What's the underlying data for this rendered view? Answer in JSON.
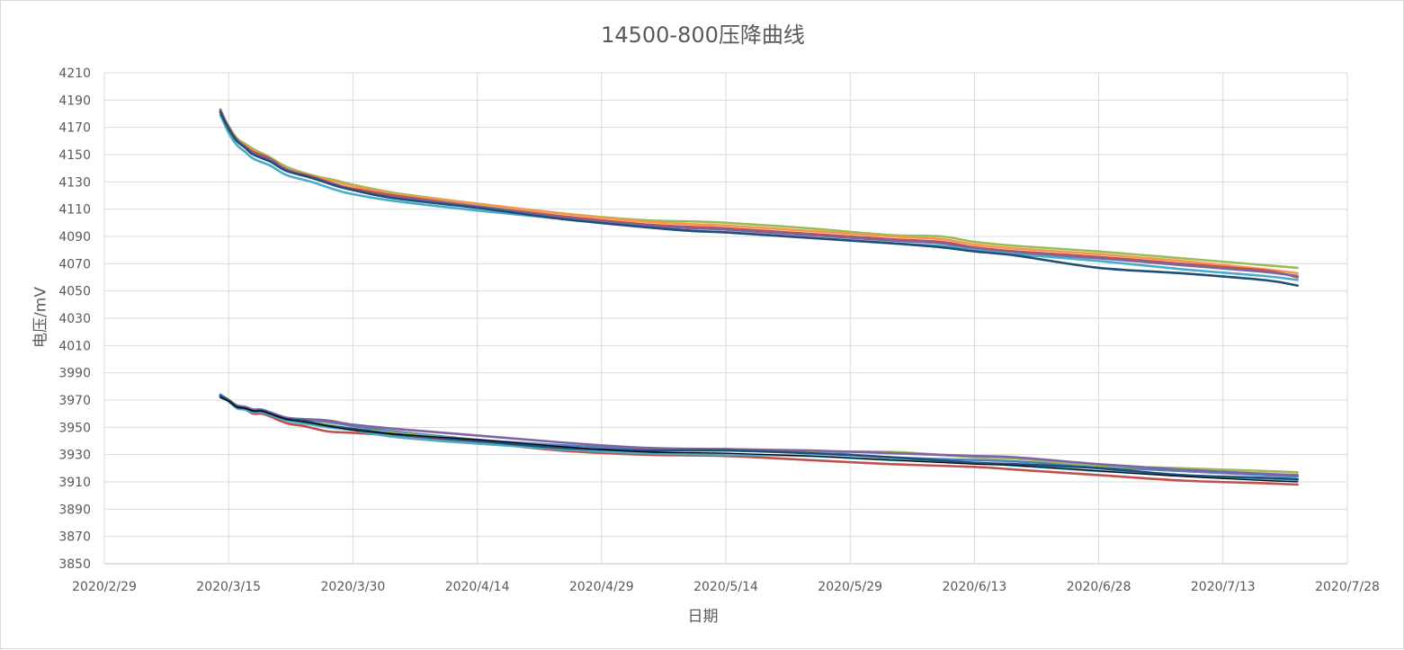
{
  "chart_data": {
    "type": "line",
    "title": "14500-800压降曲线",
    "xlabel": "日期",
    "ylabel": "电压/mV",
    "ylim": [
      3850,
      4210
    ],
    "yticks": [
      3850,
      3870,
      3890,
      3910,
      3930,
      3950,
      3970,
      3990,
      4010,
      4030,
      4050,
      4070,
      4090,
      4110,
      4130,
      4150,
      4170,
      4190,
      4210
    ],
    "xlim": [
      "2020/2/29",
      "2020/7/28"
    ],
    "xticks": [
      "2020/2/29",
      "2020/3/15",
      "2020/3/30",
      "2020/4/14",
      "2020/4/29",
      "2020/5/14",
      "2020/5/29",
      "2020/6/13",
      "2020/6/28",
      "2020/7/13",
      "2020/7/28"
    ],
    "grid": true,
    "legend": "none",
    "colors": {
      "text": "#595959",
      "grid": "#d9d9d9",
      "axis": "#bfbfbf",
      "series": [
        "#9bbb59",
        "#f79646",
        "#c0504d",
        "#8064a2",
        "#4bacc6",
        "#1f4e79",
        "#4f81bd",
        "#000000"
      ]
    },
    "series": [
      {
        "group": "upper",
        "color": "#9bbb59",
        "x": [
          "2020/3/14",
          "2020/3/15",
          "2020/3/16",
          "2020/3/17",
          "2020/3/18",
          "2020/3/20",
          "2020/3/22",
          "2020/3/25",
          "2020/3/28",
          "2020/3/30",
          "2020/4/4",
          "2020/4/14",
          "2020/4/24",
          "2020/5/4",
          "2020/5/10",
          "2020/5/14",
          "2020/5/24",
          "2020/6/3",
          "2020/6/9",
          "2020/6/13",
          "2020/6/18",
          "2020/6/28",
          "2020/7/8",
          "2020/7/18",
          "2020/7/22"
        ],
        "y": [
          4181,
          4171,
          4162,
          4158,
          4154,
          4148,
          4141,
          4135,
          4131,
          4128,
          4122,
          4114,
          4107,
          4102,
          4101,
          4100,
          4096,
          4091,
          4090,
          4086,
          4083,
          4079,
          4074,
          4069,
          4067
        ]
      },
      {
        "group": "upper",
        "color": "#f79646",
        "x": [
          "2020/3/14",
          "2020/3/15",
          "2020/3/16",
          "2020/3/17",
          "2020/3/18",
          "2020/3/20",
          "2020/3/22",
          "2020/3/25",
          "2020/3/28",
          "2020/3/30",
          "2020/4/4",
          "2020/4/14",
          "2020/4/24",
          "2020/5/4",
          "2020/5/10",
          "2020/5/14",
          "2020/5/24",
          "2020/6/3",
          "2020/6/9",
          "2020/6/13",
          "2020/6/18",
          "2020/6/28",
          "2020/7/8",
          "2020/7/18",
          "2020/7/22"
        ],
        "y": [
          4182,
          4170,
          4161,
          4157,
          4153,
          4147,
          4140,
          4134,
          4130,
          4127,
          4121,
          4114,
          4107,
          4101,
          4099,
          4098,
          4094,
          4090,
          4088,
          4084,
          4081,
          4077,
          4072,
          4066,
          4063
        ]
      },
      {
        "group": "upper",
        "color": "#c0504d",
        "x": [
          "2020/3/14",
          "2020/3/15",
          "2020/3/16",
          "2020/3/17",
          "2020/3/18",
          "2020/3/20",
          "2020/3/22",
          "2020/3/25",
          "2020/3/28",
          "2020/3/30",
          "2020/4/4",
          "2020/4/14",
          "2020/4/24",
          "2020/5/4",
          "2020/5/10",
          "2020/5/14",
          "2020/5/24",
          "2020/6/3",
          "2020/6/9",
          "2020/6/13",
          "2020/6/18",
          "2020/6/28",
          "2020/7/8",
          "2020/7/18",
          "2020/7/22"
        ],
        "y": [
          4183,
          4170,
          4161,
          4156,
          4152,
          4147,
          4139,
          4134,
          4128,
          4125,
          4120,
          4112,
          4105,
          4099,
          4097,
          4096,
          4092,
          4088,
          4086,
          4082,
          4079,
          4075,
          4070,
          4065,
          4060
        ]
      },
      {
        "group": "upper",
        "color": "#8064a2",
        "x": [
          "2020/3/14",
          "2020/3/15",
          "2020/3/16",
          "2020/3/17",
          "2020/3/18",
          "2020/3/20",
          "2020/3/22",
          "2020/3/25",
          "2020/3/28",
          "2020/3/30",
          "2020/4/4",
          "2020/4/14",
          "2020/4/24",
          "2020/5/4",
          "2020/5/10",
          "2020/5/14",
          "2020/5/24",
          "2020/6/3",
          "2020/6/9",
          "2020/6/13",
          "2020/6/18",
          "2020/6/28",
          "2020/7/8",
          "2020/7/18",
          "2020/7/22"
        ],
        "y": [
          4182,
          4169,
          4160,
          4156,
          4151,
          4146,
          4139,
          4133,
          4128,
          4124,
          4119,
          4112,
          4104,
          4098,
          4096,
          4095,
          4091,
          4087,
          4085,
          4081,
          4078,
          4074,
          4069,
          4064,
          4061
        ]
      },
      {
        "group": "upper",
        "color": "#4bacc6",
        "x": [
          "2020/3/14",
          "2020/3/15",
          "2020/3/16",
          "2020/3/17",
          "2020/3/18",
          "2020/3/20",
          "2020/3/22",
          "2020/3/25",
          "2020/3/28",
          "2020/3/30",
          "2020/4/4",
          "2020/4/14",
          "2020/4/24",
          "2020/5/4",
          "2020/5/10",
          "2020/5/14",
          "2020/5/24",
          "2020/6/3",
          "2020/6/9",
          "2020/6/13",
          "2020/6/18",
          "2020/6/28",
          "2020/7/8",
          "2020/7/18",
          "2020/7/22"
        ],
        "y": [
          4179,
          4166,
          4157,
          4152,
          4147,
          4142,
          4135,
          4130,
          4124,
          4121,
          4116,
          4109,
          4103,
          4097,
          4094,
          4093,
          4089,
          4085,
          4083,
          4080,
          4077,
          4072,
          4066,
          4061,
          4058
        ]
      },
      {
        "group": "upper",
        "color": "#1f4e79",
        "x": [
          "2020/3/14",
          "2020/3/15",
          "2020/3/16",
          "2020/3/17",
          "2020/3/18",
          "2020/3/20",
          "2020/3/22",
          "2020/3/25",
          "2020/3/28",
          "2020/3/30",
          "2020/4/4",
          "2020/4/14",
          "2020/4/24",
          "2020/5/4",
          "2020/5/10",
          "2020/5/14",
          "2020/5/24",
          "2020/6/3",
          "2020/6/9",
          "2020/6/13",
          "2020/6/18",
          "2020/6/28",
          "2020/7/8",
          "2020/7/18",
          "2020/7/22"
        ],
        "y": [
          4181,
          4169,
          4160,
          4155,
          4150,
          4145,
          4138,
          4133,
          4127,
          4124,
          4118,
          4111,
          4103,
          4097,
          4094,
          4093,
          4089,
          4085,
          4082,
          4079,
          4076,
          4067,
          4063,
          4058,
          4054
        ]
      },
      {
        "group": "lower",
        "color": "#4f81bd",
        "x": [
          "2020/3/14",
          "2020/3/15",
          "2020/3/16",
          "2020/3/17",
          "2020/3/18",
          "2020/3/19",
          "2020/3/20",
          "2020/3/22",
          "2020/3/24",
          "2020/3/27",
          "2020/3/30",
          "2020/4/4",
          "2020/4/14",
          "2020/4/24",
          "2020/5/4",
          "2020/5/14",
          "2020/5/24",
          "2020/6/3",
          "2020/6/13",
          "2020/6/18",
          "2020/6/28",
          "2020/7/8",
          "2020/7/18",
          "2020/7/22"
        ],
        "y": [
          3974,
          3970,
          3966,
          3965,
          3963,
          3963,
          3961,
          3957,
          3956,
          3954,
          3951,
          3947,
          3941,
          3937,
          3934,
          3934,
          3932,
          3928,
          3926,
          3925,
          3921,
          3918,
          3915,
          3914
        ]
      },
      {
        "group": "lower",
        "color": "#c0504d",
        "x": [
          "2020/3/14",
          "2020/3/15",
          "2020/3/16",
          "2020/3/17",
          "2020/3/18",
          "2020/3/19",
          "2020/3/20",
          "2020/3/22",
          "2020/3/24",
          "2020/3/27",
          "2020/3/30",
          "2020/4/4",
          "2020/4/14",
          "2020/4/24",
          "2020/5/4",
          "2020/5/14",
          "2020/5/24",
          "2020/6/3",
          "2020/6/13",
          "2020/6/18",
          "2020/6/28",
          "2020/7/8",
          "2020/7/18",
          "2020/7/22"
        ],
        "y": [
          3972,
          3969,
          3964,
          3963,
          3960,
          3960,
          3958,
          3953,
          3951,
          3947,
          3946,
          3944,
          3939,
          3933,
          3930,
          3929,
          3926,
          3923,
          3921,
          3919,
          3915,
          3911,
          3909,
          3908
        ]
      },
      {
        "group": "lower",
        "color": "#9bbb59",
        "x": [
          "2020/3/14",
          "2020/3/15",
          "2020/3/16",
          "2020/3/17",
          "2020/3/18",
          "2020/3/19",
          "2020/3/20",
          "2020/3/22",
          "2020/3/24",
          "2020/3/27",
          "2020/3/30",
          "2020/4/4",
          "2020/4/14",
          "2020/4/24",
          "2020/5/4",
          "2020/5/14",
          "2020/5/24",
          "2020/6/3",
          "2020/6/13",
          "2020/6/18",
          "2020/6/28",
          "2020/7/8",
          "2020/7/18",
          "2020/7/22"
        ],
        "y": [
          3973,
          3970,
          3965,
          3964,
          3962,
          3962,
          3960,
          3956,
          3955,
          3952,
          3949,
          3946,
          3940,
          3935,
          3933,
          3933,
          3932,
          3932,
          3928,
          3927,
          3922,
          3920,
          3918,
          3917
        ]
      },
      {
        "group": "lower",
        "color": "#8064a2",
        "x": [
          "2020/3/14",
          "2020/3/15",
          "2020/3/16",
          "2020/3/17",
          "2020/3/18",
          "2020/3/19",
          "2020/3/20",
          "2020/3/22",
          "2020/3/24",
          "2020/3/27",
          "2020/3/30",
          "2020/4/4",
          "2020/4/14",
          "2020/4/24",
          "2020/5/4",
          "2020/5/14",
          "2020/5/24",
          "2020/6/3",
          "2020/6/13",
          "2020/6/18",
          "2020/6/28",
          "2020/7/8",
          "2020/7/18",
          "2020/7/22"
        ],
        "y": [
          3973,
          3970,
          3966,
          3965,
          3963,
          3963,
          3961,
          3957,
          3956,
          3955,
          3952,
          3949,
          3944,
          3939,
          3935,
          3934,
          3933,
          3931,
          3929,
          3928,
          3923,
          3919,
          3916,
          3915
        ]
      },
      {
        "group": "lower",
        "color": "#4bacc6",
        "x": [
          "2020/3/14",
          "2020/3/15",
          "2020/3/16",
          "2020/3/17",
          "2020/3/18",
          "2020/3/19",
          "2020/3/20",
          "2020/3/22",
          "2020/3/24",
          "2020/3/27",
          "2020/3/30",
          "2020/4/4",
          "2020/4/14",
          "2020/4/24",
          "2020/5/4",
          "2020/5/14",
          "2020/5/24",
          "2020/6/3",
          "2020/6/13",
          "2020/6/18",
          "2020/6/28",
          "2020/7/8",
          "2020/7/18",
          "2020/7/22"
        ],
        "y": [
          3972,
          3969,
          3964,
          3963,
          3961,
          3961,
          3959,
          3955,
          3953,
          3950,
          3948,
          3943,
          3938,
          3934,
          3931,
          3930,
          3929,
          3926,
          3924,
          3922,
          3918,
          3915,
          3912,
          3911
        ]
      },
      {
        "group": "lower",
        "color": "#1f4e79",
        "x": [
          "2020/3/14",
          "2020/3/15",
          "2020/3/16",
          "2020/3/17",
          "2020/3/18",
          "2020/3/19",
          "2020/3/20",
          "2020/3/22",
          "2020/3/24",
          "2020/3/27",
          "2020/3/30",
          "2020/4/4",
          "2020/4/14",
          "2020/4/24",
          "2020/5/4",
          "2020/5/14",
          "2020/5/24",
          "2020/6/3",
          "2020/6/13",
          "2020/6/18",
          "2020/6/28",
          "2020/7/8",
          "2020/7/18",
          "2020/7/22"
        ],
        "y": [
          3973,
          3970,
          3965,
          3964,
          3962,
          3962,
          3960,
          3956,
          3955,
          3951,
          3949,
          3945,
          3940,
          3935,
          3933,
          3933,
          3931,
          3928,
          3924,
          3923,
          3920,
          3915,
          3913,
          3912
        ]
      },
      {
        "group": "lower",
        "color": "#000000",
        "x": [
          "2020/3/14",
          "2020/3/15",
          "2020/3/16",
          "2020/3/17",
          "2020/3/18",
          "2020/3/19",
          "2020/3/20",
          "2020/3/22",
          "2020/3/24",
          "2020/3/27",
          "2020/3/30",
          "2020/4/4",
          "2020/4/14",
          "2020/4/24",
          "2020/5/4",
          "2020/5/14",
          "2020/5/24",
          "2020/6/3",
          "2020/6/13",
          "2020/6/18",
          "2020/6/28",
          "2020/7/8",
          "2020/7/18",
          "2020/7/22"
        ],
        "y": [
          3972,
          3969,
          3965,
          3964,
          3962,
          3962,
          3960,
          3956,
          3954,
          3951,
          3948,
          3945,
          3941,
          3936,
          3932,
          3931,
          3929,
          3926,
          3923,
          3922,
          3918,
          3914,
          3911,
          3910
        ]
      }
    ]
  }
}
